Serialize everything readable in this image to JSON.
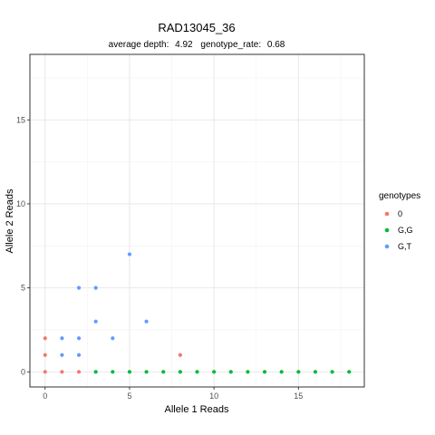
{
  "chart_data": {
    "type": "scatter",
    "title": "RAD13045_36",
    "subtitle_parts": [
      "average depth:",
      "4.92",
      "genotype_rate:",
      "0.68"
    ],
    "xlabel": "Allele 1 Reads",
    "ylabel": "Allele 2 Reads",
    "xlim": [
      -0.9,
      18.9
    ],
    "ylim": [
      -0.9,
      18.9
    ],
    "x_ticks": [
      0,
      5,
      10,
      15
    ],
    "y_ticks": [
      0,
      5,
      10,
      15
    ],
    "grid": true,
    "legend": {
      "title": "genotypes",
      "placement": "right"
    },
    "series": [
      {
        "name": "0",
        "color": "#F8766D",
        "points": [
          [
            0,
            0
          ],
          [
            0,
            1
          ],
          [
            0,
            2
          ],
          [
            1,
            0
          ],
          [
            2,
            0
          ],
          [
            8,
            1
          ]
        ]
      },
      {
        "name": "G,G",
        "color": "#00BA38",
        "points": [
          [
            3,
            0
          ],
          [
            4,
            0
          ],
          [
            5,
            0
          ],
          [
            6,
            0
          ],
          [
            7,
            0
          ],
          [
            8,
            0
          ],
          [
            9,
            0
          ],
          [
            10,
            0
          ],
          [
            11,
            0
          ],
          [
            12,
            0
          ],
          [
            13,
            0
          ],
          [
            14,
            0
          ],
          [
            15,
            0
          ],
          [
            16,
            0
          ],
          [
            17,
            0
          ],
          [
            18,
            0
          ]
        ]
      },
      {
        "name": "G,T",
        "color": "#619CFF",
        "points": [
          [
            1,
            1
          ],
          [
            1,
            2
          ],
          [
            2,
            1
          ],
          [
            2,
            2
          ],
          [
            2,
            5
          ],
          [
            3,
            3
          ],
          [
            3,
            5
          ],
          [
            4,
            2
          ],
          [
            5,
            7
          ],
          [
            6,
            3
          ]
        ]
      }
    ]
  }
}
